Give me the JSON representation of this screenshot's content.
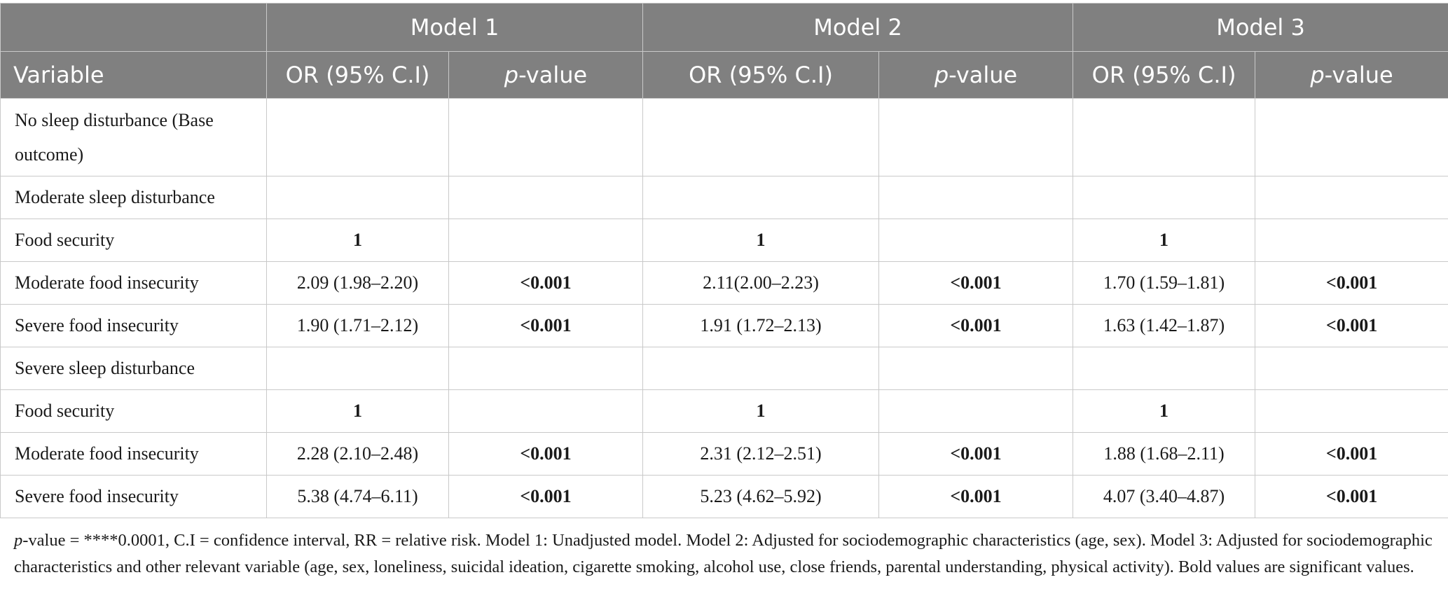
{
  "header": {
    "groups": [
      "Model 1",
      "Model 2",
      "Model 3"
    ],
    "variable_label": "Variable",
    "or_label": "OR (95% C.I)",
    "p_italic": "p",
    "p_suffix": "-value"
  },
  "rows": [
    {
      "variable": "No sleep disturbance (Base outcome)",
      "cells": [
        "",
        "",
        "",
        "",
        "",
        ""
      ],
      "bold": [
        false,
        false,
        false,
        false,
        false,
        false
      ]
    },
    {
      "variable": "Moderate sleep disturbance",
      "cells": [
        "",
        "",
        "",
        "",
        "",
        ""
      ],
      "bold": [
        false,
        false,
        false,
        false,
        false,
        false
      ]
    },
    {
      "variable": "Food security",
      "cells": [
        "1",
        "",
        "1",
        "",
        "1",
        ""
      ],
      "bold": [
        true,
        false,
        true,
        false,
        true,
        false
      ]
    },
    {
      "variable": "Moderate food insecurity",
      "cells": [
        "2.09 (1.98–2.20)",
        "<0.001",
        "2.11(2.00–2.23)",
        "<0.001",
        "1.70 (1.59–1.81)",
        "<0.001"
      ],
      "bold": [
        false,
        true,
        false,
        true,
        false,
        true
      ]
    },
    {
      "variable": "Severe food insecurity",
      "cells": [
        "1.90 (1.71–2.12)",
        "<0.001",
        "1.91 (1.72–2.13)",
        "<0.001",
        "1.63 (1.42–1.87)",
        "<0.001"
      ],
      "bold": [
        false,
        true,
        false,
        true,
        false,
        true
      ]
    },
    {
      "variable": "Severe sleep disturbance",
      "cells": [
        "",
        "",
        "",
        "",
        "",
        ""
      ],
      "bold": [
        false,
        false,
        false,
        false,
        false,
        false
      ]
    },
    {
      "variable": "Food security",
      "cells": [
        "1",
        "",
        "1",
        "",
        "1",
        ""
      ],
      "bold": [
        true,
        false,
        true,
        false,
        true,
        false
      ]
    },
    {
      "variable": "Moderate food insecurity",
      "cells": [
        "2.28 (2.10–2.48)",
        "<0.001",
        "2.31 (2.12–2.51)",
        "<0.001",
        "1.88 (1.68–2.11)",
        "<0.001"
      ],
      "bold": [
        false,
        true,
        false,
        true,
        false,
        true
      ]
    },
    {
      "variable": "Severe food insecurity",
      "cells": [
        "5.38 (4.74–6.11)",
        "<0.001",
        "5.23 (4.62–5.92)",
        "<0.001",
        "4.07 (3.40–4.87)",
        "<0.001"
      ],
      "bold": [
        false,
        true,
        false,
        true,
        false,
        true
      ]
    }
  ],
  "footnote": {
    "p_italic": "p",
    "text": "-value = ****0.0001, C.I = confidence interval, RR = relative risk. Model 1: Unadjusted model. Model 2: Adjusted for sociodemographic characteristics (age, sex). Model 3: Adjusted for sociodemographic characteristics and other relevant variable (age, sex, loneliness, suicidal ideation, cigarette smoking, alcohol use, close friends, parental understanding, physical activity). Bold values are significant values."
  }
}
